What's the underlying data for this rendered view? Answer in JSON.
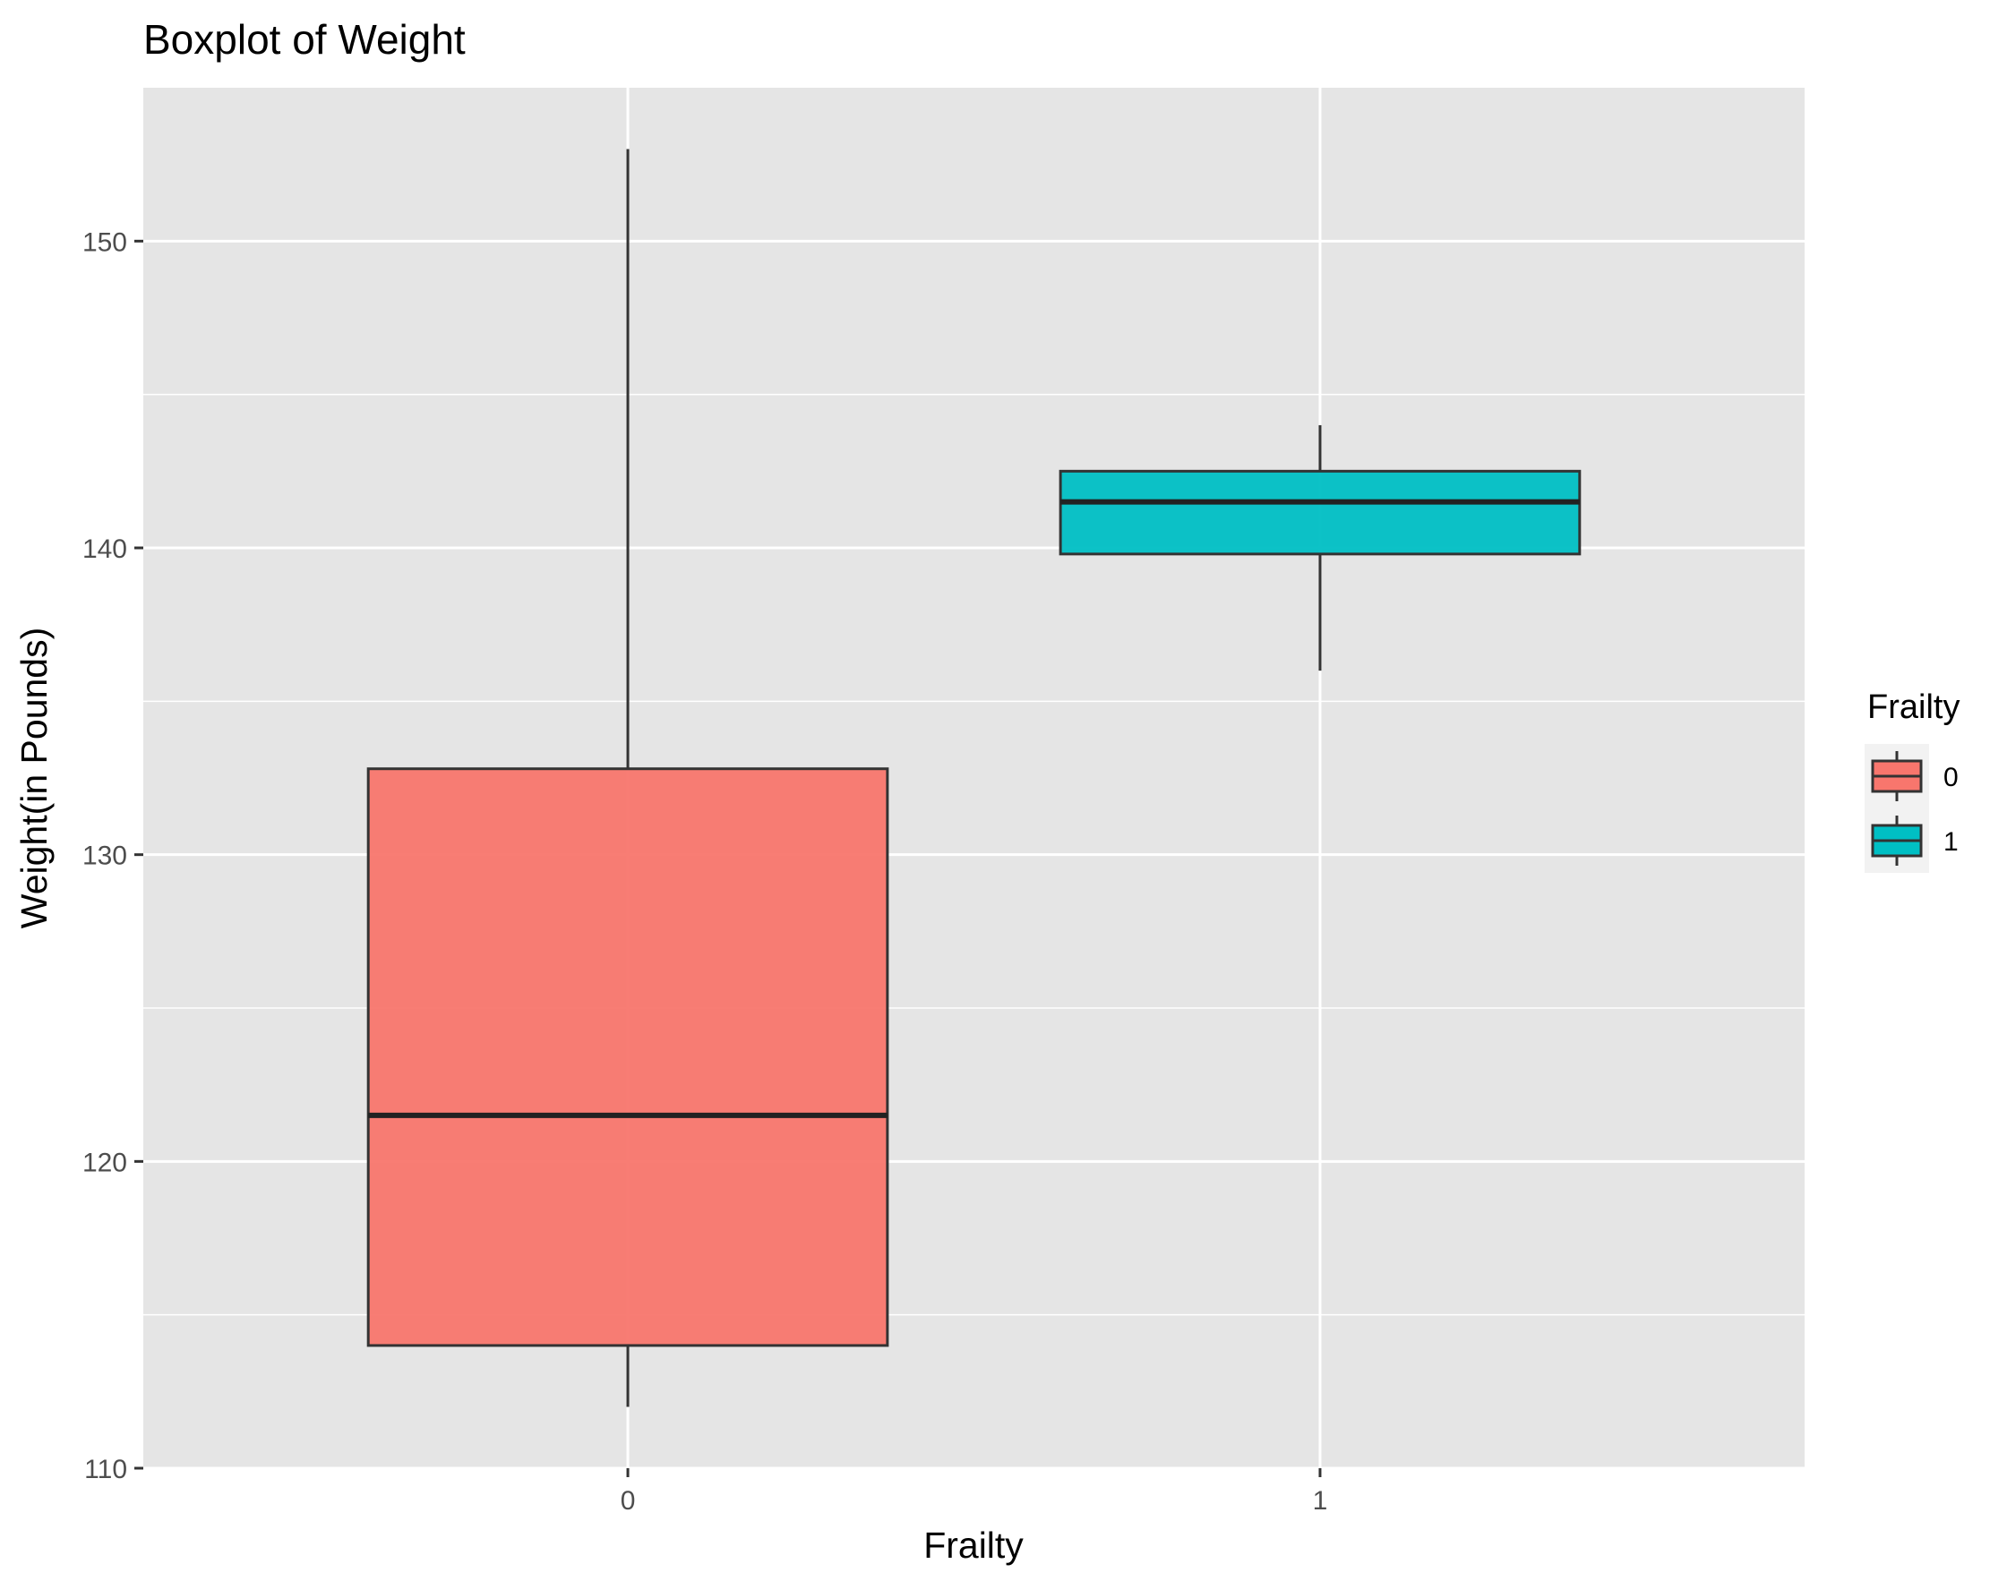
{
  "chart_data": {
    "type": "boxplot",
    "title": "Boxplot of Weight",
    "xlabel": "Frailty",
    "ylabel": "Weight(in Pounds)",
    "ylim": [
      110,
      155
    ],
    "yticks": [
      110,
      120,
      130,
      140,
      150
    ],
    "categories": [
      "0",
      "1"
    ],
    "boxes": [
      {
        "category": "0",
        "min": 112,
        "q1": 114,
        "median": 121.5,
        "q3": 132.8,
        "max": 153,
        "color": "#F8766D"
      },
      {
        "category": "1",
        "min": 136,
        "q1": 139.8,
        "median": 141.5,
        "q3": 142.5,
        "max": 144,
        "color": "#00BFC4"
      }
    ],
    "legend": {
      "title": "Frailty",
      "position": "right",
      "entries": [
        {
          "label": "0",
          "color": "#F8766D"
        },
        {
          "label": "1",
          "color": "#00BFC4"
        }
      ]
    },
    "grid": true,
    "panel_background": "#E5E5E5",
    "grid_color": "#FFFFFF"
  }
}
